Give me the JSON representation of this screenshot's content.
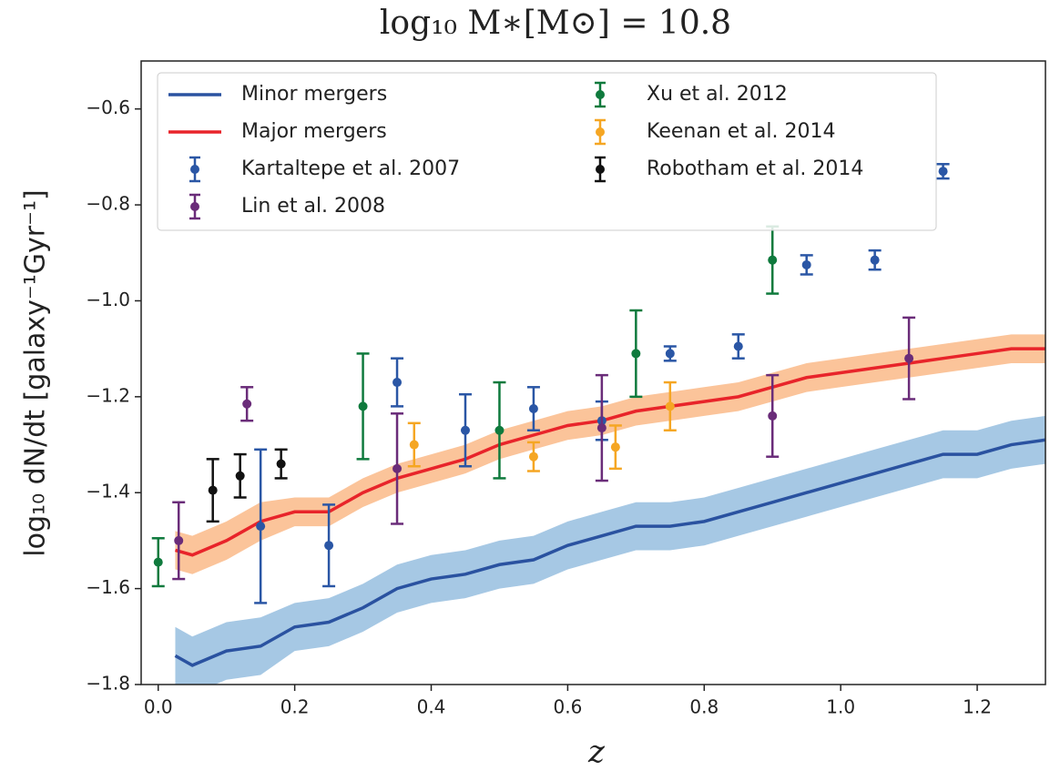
{
  "chart_data": {
    "type": "line",
    "title": "log₁₀ M∗[M⊙] = 10.8",
    "xlabel": "z",
    "ylabel": "log₁₀ dN/dt [galaxy⁻¹Gyr⁻¹]",
    "xlim": [
      -0.025,
      1.3
    ],
    "ylim": [
      -1.8,
      -0.5
    ],
    "xticks": [
      {
        "value": 0,
        "label": "0.0"
      },
      0.2,
      0.4,
      0.6,
      0.8,
      {
        "value": 1,
        "label": "1.0"
      },
      1.2
    ],
    "yticks": [
      {
        "value": -1.8,
        "label": "−1.8"
      },
      {
        "value": -1.6,
        "label": "−1.6"
      },
      {
        "value": -1.4,
        "label": "−1.4"
      },
      {
        "value": -1.2,
        "label": "−1.2"
      },
      {
        "value": -1,
        "label": "−1.0"
      },
      {
        "value": -0.8,
        "label": "−0.8"
      },
      {
        "value": -0.6,
        "label": "−0.6"
      }
    ],
    "legend": "upper left",
    "x": [
      0.025,
      0.05,
      0.1,
      0.15,
      0.2,
      0.25,
      0.3,
      0.35,
      0.4,
      0.45,
      0.5,
      0.55,
      0.6,
      0.65,
      0.7,
      0.75,
      0.8,
      0.85,
      0.9,
      0.95,
      1.0,
      1.05,
      1.1,
      1.15,
      1.2,
      1.25,
      1.3
    ],
    "series": [
      {
        "name": "Minor mergers",
        "type": "line",
        "color": "#2a52a0",
        "band_color": "#a6c8e4",
        "values": [
          -1.74,
          -1.76,
          -1.73,
          -1.72,
          -1.68,
          -1.67,
          -1.64,
          -1.6,
          -1.58,
          -1.57,
          -1.55,
          -1.54,
          -1.51,
          -1.49,
          -1.47,
          -1.47,
          -1.46,
          -1.44,
          -1.42,
          -1.4,
          -1.38,
          -1.36,
          -1.34,
          -1.32,
          -1.32,
          -1.3,
          -1.29
        ],
        "lower": [
          -1.8,
          -1.82,
          -1.79,
          -1.78,
          -1.73,
          -1.72,
          -1.69,
          -1.65,
          -1.63,
          -1.62,
          -1.6,
          -1.59,
          -1.56,
          -1.54,
          -1.52,
          -1.52,
          -1.51,
          -1.49,
          -1.47,
          -1.45,
          -1.43,
          -1.41,
          -1.39,
          -1.37,
          -1.37,
          -1.35,
          -1.34
        ],
        "upper": [
          -1.68,
          -1.7,
          -1.67,
          -1.66,
          -1.63,
          -1.62,
          -1.59,
          -1.55,
          -1.53,
          -1.52,
          -1.5,
          -1.49,
          -1.46,
          -1.44,
          -1.42,
          -1.42,
          -1.41,
          -1.39,
          -1.37,
          -1.35,
          -1.33,
          -1.31,
          -1.29,
          -1.27,
          -1.27,
          -1.25,
          -1.24
        ]
      },
      {
        "name": "Major mergers",
        "type": "line",
        "color": "#e8242a",
        "band_color": "#fbc49a",
        "values": [
          -1.52,
          -1.53,
          -1.5,
          -1.46,
          -1.44,
          -1.44,
          -1.4,
          -1.37,
          -1.35,
          -1.33,
          -1.3,
          -1.28,
          -1.26,
          -1.25,
          -1.23,
          -1.22,
          -1.21,
          -1.2,
          -1.18,
          -1.16,
          -1.15,
          -1.14,
          -1.13,
          -1.12,
          -1.11,
          -1.1,
          -1.1
        ],
        "lower": [
          -1.56,
          -1.57,
          -1.54,
          -1.5,
          -1.47,
          -1.47,
          -1.43,
          -1.4,
          -1.38,
          -1.36,
          -1.33,
          -1.31,
          -1.29,
          -1.28,
          -1.26,
          -1.25,
          -1.24,
          -1.23,
          -1.21,
          -1.19,
          -1.18,
          -1.17,
          -1.16,
          -1.15,
          -1.14,
          -1.13,
          -1.13
        ],
        "upper": [
          -1.48,
          -1.49,
          -1.46,
          -1.42,
          -1.41,
          -1.41,
          -1.37,
          -1.34,
          -1.32,
          -1.3,
          -1.27,
          -1.25,
          -1.23,
          -1.22,
          -1.2,
          -1.19,
          -1.18,
          -1.17,
          -1.15,
          -1.13,
          -1.12,
          -1.11,
          -1.1,
          -1.09,
          -1.08,
          -1.07,
          -1.07
        ]
      },
      {
        "name": "Kartaltepe et al. 2007",
        "type": "errorbar",
        "color": "#2a56a5",
        "x": [
          0.15,
          0.25,
          0.35,
          0.45,
          0.55,
          0.65,
          0.75,
          0.85,
          0.95,
          1.05,
          1.15
        ],
        "values": [
          -1.47,
          -1.51,
          -1.17,
          -1.27,
          -1.225,
          -1.25,
          -1.11,
          -1.095,
          -0.925,
          -0.915,
          -0.73
        ],
        "errors": [
          0.16,
          0.085,
          0.05,
          0.075,
          0.045,
          0.04,
          0.015,
          0.025,
          0.02,
          0.02,
          0.015
        ]
      },
      {
        "name": "Lin et al. 2008",
        "type": "errorbar",
        "color": "#6a2c79",
        "x": [
          0.03,
          0.13,
          0.35,
          0.65,
          0.9,
          1.1
        ],
        "values": [
          -1.5,
          -1.215,
          -1.35,
          -1.265,
          -1.24,
          -1.12
        ],
        "errors": [
          0.08,
          0.035,
          0.115,
          0.11,
          0.085,
          0.085
        ]
      },
      {
        "name": "Xu et al. 2012",
        "type": "errorbar",
        "color": "#0f7a3d",
        "x": [
          0.0,
          0.3,
          0.5,
          0.7,
          0.9
        ],
        "values": [
          -1.545,
          -1.22,
          -1.27,
          -1.11,
          -0.915
        ],
        "errors": [
          0.05,
          0.11,
          0.1,
          0.09,
          0.07
        ]
      },
      {
        "name": "Keenan et al. 2014",
        "type": "errorbar",
        "color": "#f5a623",
        "x": [
          0.375,
          0.55,
          0.67,
          0.75
        ],
        "values": [
          -1.3,
          -1.325,
          -1.305,
          -1.22
        ],
        "errors": [
          0.045,
          0.03,
          0.045,
          0.05
        ]
      },
      {
        "name": "Robotham et al. 2014",
        "type": "errorbar",
        "color": "#111111",
        "x": [
          0.08,
          0.12,
          0.18
        ],
        "values": [
          -1.395,
          -1.365,
          -1.34
        ],
        "errors": [
          0.065,
          0.045,
          0.03
        ]
      }
    ]
  }
}
